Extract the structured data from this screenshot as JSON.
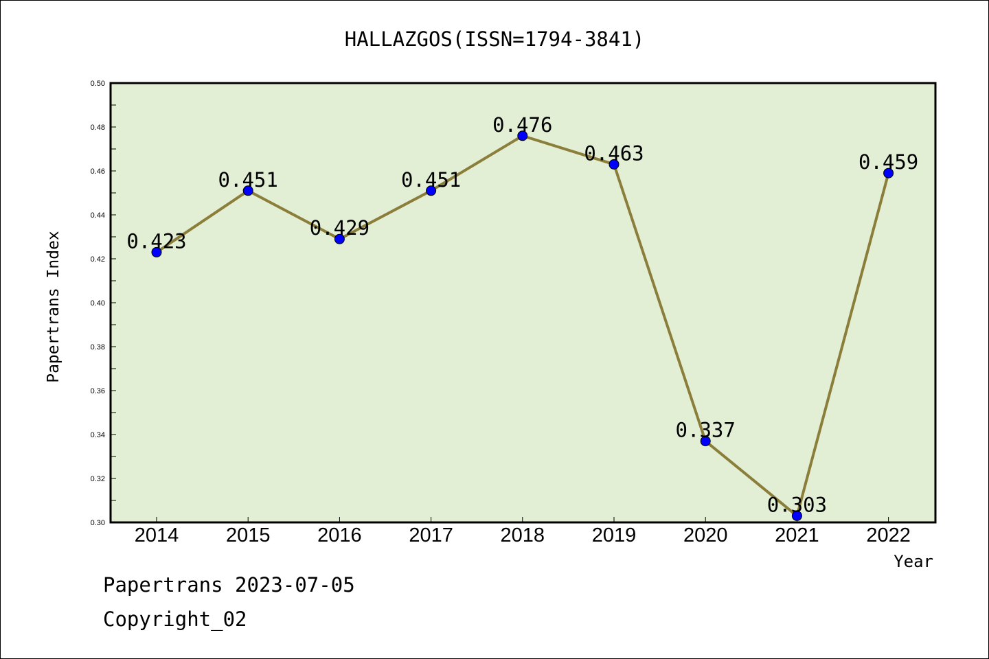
{
  "chart_data": {
    "type": "line",
    "title": "HALLAZGOS(ISSN=1794-3841)",
    "xlabel": "Year",
    "ylabel": "Papertrans Index",
    "categories": [
      "2014",
      "2015",
      "2016",
      "2017",
      "2018",
      "2019",
      "2020",
      "2021",
      "2022"
    ],
    "series": [
      {
        "values": [
          0.423,
          0.451,
          0.429,
          0.451,
          0.476,
          0.463,
          0.337,
          0.303,
          0.459
        ],
        "labels": [
          "0.423",
          "0.451",
          "0.429",
          "0.451",
          "0.476",
          "0.463",
          "0.337",
          "0.303",
          "0.459"
        ]
      }
    ],
    "ylim": [
      0.3,
      0.5
    ],
    "yticks": [
      "0.30",
      "0.32",
      "0.34",
      "0.36",
      "0.38",
      "0.40",
      "0.42",
      "0.44",
      "0.46",
      "0.48",
      "0.50"
    ],
    "grid": false,
    "colors": {
      "plot_background": "#e2efd5",
      "line": "#8b7d3a",
      "marker": "#0000ff",
      "frame": "#000000"
    }
  },
  "footer": {
    "line1": "Papertrans 2023-07-05",
    "line2": "Copyright_02"
  }
}
